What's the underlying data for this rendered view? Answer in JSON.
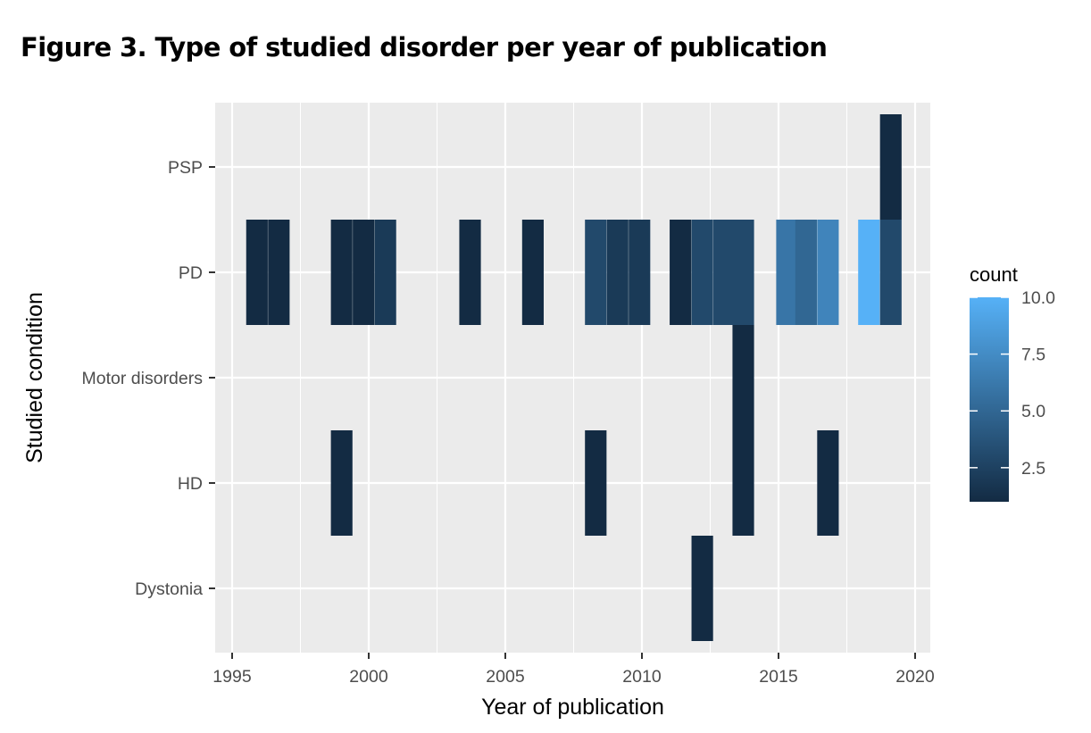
{
  "figure": {
    "title": "Figure 3. Type of studied disorder per year of publication"
  },
  "chart_data": {
    "type": "heatmap",
    "xlabel": "Year of publication",
    "ylabel": "Studied condition",
    "xlim": [
      1994.3,
      2020.5
    ],
    "x_ticks": [
      1995,
      2000,
      2005,
      2010,
      2015,
      2020
    ],
    "categories": [
      "Dystonia",
      "HD",
      "Motor disorders",
      "PD",
      "PSP"
    ],
    "bin_width": 0.77,
    "grid": true,
    "legend": {
      "title": "count",
      "placement": "right",
      "min": 1,
      "max": 10,
      "ticks": [
        2.5,
        5.0,
        7.5,
        10.0
      ],
      "tick_labels": [
        "2.5",
        "5.0",
        "7.5",
        "10.0"
      ],
      "color_low": "#132B43",
      "color_high": "#56B1F7"
    },
    "cells": [
      {
        "x": 1995.9,
        "y": "PD",
        "count": 1
      },
      {
        "x": 1996.7,
        "y": "PD",
        "count": 1
      },
      {
        "x": 1999.0,
        "y": "PD",
        "count": 1
      },
      {
        "x": 1999.8,
        "y": "PD",
        "count": 1
      },
      {
        "x": 2000.6,
        "y": "PD",
        "count": 2
      },
      {
        "x": 2003.7,
        "y": "PD",
        "count": 1
      },
      {
        "x": 2006.0,
        "y": "PD",
        "count": 1
      },
      {
        "x": 2008.3,
        "y": "PD",
        "count": 3
      },
      {
        "x": 2009.1,
        "y": "PD",
        "count": 2
      },
      {
        "x": 2009.9,
        "y": "PD",
        "count": 2
      },
      {
        "x": 2011.4,
        "y": "PD",
        "count": 1
      },
      {
        "x": 2012.2,
        "y": "PD",
        "count": 3
      },
      {
        "x": 2013.0,
        "y": "PD",
        "count": 3
      },
      {
        "x": 2013.7,
        "y": "PD",
        "count": 3
      },
      {
        "x": 2015.3,
        "y": "PD",
        "count": 6
      },
      {
        "x": 2016.0,
        "y": "PD",
        "count": 5
      },
      {
        "x": 2016.8,
        "y": "PD",
        "count": 7
      },
      {
        "x": 2018.3,
        "y": "PD",
        "count": 10
      },
      {
        "x": 2019.1,
        "y": "PD",
        "count": 3
      },
      {
        "x": 2019.1,
        "y": "PSP",
        "count": 1
      },
      {
        "x": 2013.7,
        "y": "Motor disorders",
        "count": 1
      },
      {
        "x": 1999.0,
        "y": "HD",
        "count": 1
      },
      {
        "x": 2008.3,
        "y": "HD",
        "count": 1
      },
      {
        "x": 2013.7,
        "y": "HD",
        "count": 1
      },
      {
        "x": 2016.8,
        "y": "HD",
        "count": 1
      },
      {
        "x": 2012.2,
        "y": "Dystonia",
        "count": 1
      }
    ]
  }
}
